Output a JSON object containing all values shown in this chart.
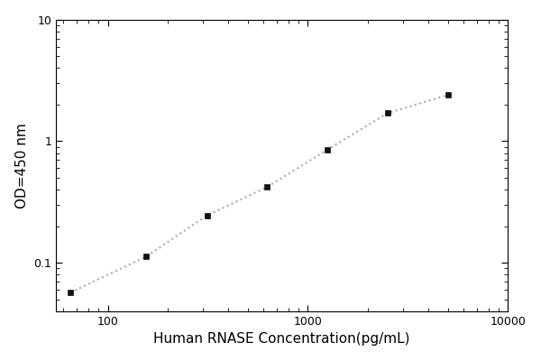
{
  "x": [
    65,
    156,
    313,
    625,
    1250,
    2500,
    5000
  ],
  "y": [
    0.057,
    0.113,
    0.245,
    0.42,
    0.85,
    1.7,
    2.4
  ],
  "xlabel": "Human RNASE Concentration(pg/mL)",
  "ylabel": "OD=450 nm",
  "xlim": [
    55,
    10000
  ],
  "ylim": [
    0.04,
    10
  ],
  "marker": "s",
  "marker_color": "#111111",
  "marker_size": 5,
  "line_color": "#aaaaaa",
  "line_style": ":",
  "line_width": 1.5,
  "background_color": "#ffffff",
  "xlabel_fontsize": 11,
  "ylabel_fontsize": 11,
  "tick_fontsize": 9,
  "ytick_labels": [
    "0.1",
    "1",
    "10"
  ],
  "ytick_values": [
    0.1,
    1,
    10
  ],
  "xtick_labels": [
    "100",
    "1000",
    "10000"
  ],
  "xtick_values": [
    100,
    1000,
    10000
  ]
}
